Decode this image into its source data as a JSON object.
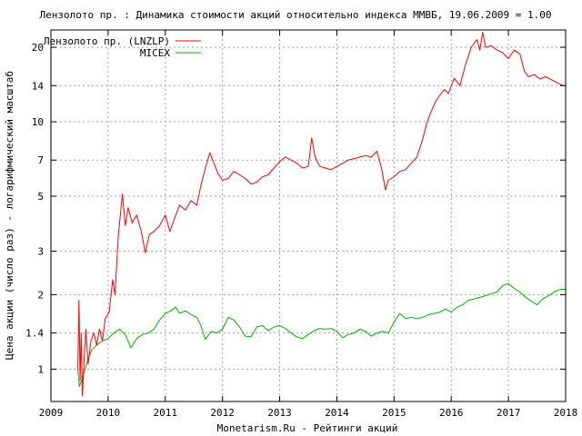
{
  "colors": {
    "lnzlp": "#ff0000",
    "micex": "#00b000",
    "grid": "#a0a0a0",
    "frame": "#000000"
  },
  "chart_data": {
    "type": "line",
    "title": "Лензолото пр. : Динамика стоимости акций относительно индекса ММВБ, 19.06.2009 = 1.00",
    "xlabel": "Monetarism.Ru - Рейтинги акций",
    "ylabel": "Цена акции (число раз) - логарифмический масштаб",
    "x_ticks": [
      "2009",
      "2010",
      "2011",
      "2012",
      "2013",
      "2014",
      "2015",
      "2016",
      "2017",
      "2018"
    ],
    "y_ticks": [
      "1",
      "1.4",
      "2",
      "3",
      "5",
      "7",
      "10",
      "14",
      "20"
    ],
    "y_scale": "log",
    "xlim": [
      2009,
      2018
    ],
    "ylim": [
      0.74,
      23.5
    ],
    "grid": true,
    "legend_position": "top-left",
    "series": [
      {
        "name": "Лензолото пр. (LNZLP)",
        "color": "#ff0000",
        "points": [
          [
            2009.47,
            1.0
          ],
          [
            2009.49,
            1.9
          ],
          [
            2009.51,
            0.9
          ],
          [
            2009.53,
            1.4
          ],
          [
            2009.55,
            0.78
          ],
          [
            2009.58,
            1.1
          ],
          [
            2009.61,
            1.45
          ],
          [
            2009.65,
            1.05
          ],
          [
            2009.7,
            1.3
          ],
          [
            2009.75,
            1.4
          ],
          [
            2009.8,
            1.25
          ],
          [
            2009.85,
            1.45
          ],
          [
            2009.9,
            1.3
          ],
          [
            2009.95,
            1.6
          ],
          [
            2010.02,
            1.7
          ],
          [
            2010.08,
            2.3
          ],
          [
            2010.12,
            2.0
          ],
          [
            2010.18,
            3.5
          ],
          [
            2010.25,
            5.1
          ],
          [
            2010.3,
            3.8
          ],
          [
            2010.35,
            4.5
          ],
          [
            2010.42,
            3.9
          ],
          [
            2010.5,
            4.2
          ],
          [
            2010.58,
            3.6
          ],
          [
            2010.65,
            2.95
          ],
          [
            2010.72,
            3.5
          ],
          [
            2010.8,
            3.6
          ],
          [
            2010.9,
            3.8
          ],
          [
            2011.0,
            4.2
          ],
          [
            2011.08,
            3.6
          ],
          [
            2011.15,
            4.0
          ],
          [
            2011.25,
            4.6
          ],
          [
            2011.35,
            4.4
          ],
          [
            2011.45,
            4.8
          ],
          [
            2011.55,
            4.6
          ],
          [
            2011.62,
            5.5
          ],
          [
            2011.7,
            6.5
          ],
          [
            2011.78,
            7.5
          ],
          [
            2011.85,
            6.8
          ],
          [
            2011.92,
            6.2
          ],
          [
            2012.0,
            5.8
          ],
          [
            2012.1,
            5.9
          ],
          [
            2012.2,
            6.3
          ],
          [
            2012.3,
            6.1
          ],
          [
            2012.4,
            5.9
          ],
          [
            2012.5,
            5.6
          ],
          [
            2012.6,
            5.7
          ],
          [
            2012.7,
            6.0
          ],
          [
            2012.8,
            6.1
          ],
          [
            2012.9,
            6.5
          ],
          [
            2013.0,
            6.9
          ],
          [
            2013.1,
            7.2
          ],
          [
            2013.2,
            7.0
          ],
          [
            2013.3,
            6.8
          ],
          [
            2013.4,
            6.5
          ],
          [
            2013.5,
            6.6
          ],
          [
            2013.56,
            8.6
          ],
          [
            2013.62,
            7.2
          ],
          [
            2013.7,
            6.6
          ],
          [
            2013.8,
            6.5
          ],
          [
            2013.9,
            6.4
          ],
          [
            2014.0,
            6.6
          ],
          [
            2014.1,
            6.8
          ],
          [
            2014.2,
            7.0
          ],
          [
            2014.3,
            7.1
          ],
          [
            2014.4,
            7.2
          ],
          [
            2014.5,
            7.3
          ],
          [
            2014.6,
            7.2
          ],
          [
            2014.7,
            7.6
          ],
          [
            2014.78,
            6.5
          ],
          [
            2014.85,
            5.3
          ],
          [
            2014.9,
            5.8
          ],
          [
            2015.0,
            6.0
          ],
          [
            2015.1,
            6.3
          ],
          [
            2015.2,
            6.4
          ],
          [
            2015.3,
            6.8
          ],
          [
            2015.4,
            7.2
          ],
          [
            2015.5,
            8.5
          ],
          [
            2015.58,
            10.0
          ],
          [
            2015.65,
            11.0
          ],
          [
            2015.72,
            12.0
          ],
          [
            2015.8,
            12.8
          ],
          [
            2015.88,
            13.5
          ],
          [
            2015.95,
            13.0
          ],
          [
            2016.05,
            15.0
          ],
          [
            2016.15,
            14.0
          ],
          [
            2016.25,
            17.0
          ],
          [
            2016.35,
            20.0
          ],
          [
            2016.45,
            21.5
          ],
          [
            2016.5,
            19.5
          ],
          [
            2016.55,
            23.0
          ],
          [
            2016.6,
            20.0
          ],
          [
            2016.7,
            20.3
          ],
          [
            2016.8,
            19.5
          ],
          [
            2016.9,
            19.0
          ],
          [
            2017.0,
            18.0
          ],
          [
            2017.1,
            19.5
          ],
          [
            2017.2,
            18.8
          ],
          [
            2017.28,
            16.0
          ],
          [
            2017.35,
            15.2
          ],
          [
            2017.45,
            15.5
          ],
          [
            2017.55,
            14.9
          ],
          [
            2017.65,
            15.2
          ],
          [
            2017.75,
            14.8
          ],
          [
            2017.85,
            14.4
          ],
          [
            2017.95,
            14.0
          ],
          [
            2018.0,
            14.0
          ]
        ]
      },
      {
        "name": "MICEX",
        "color": "#00b000",
        "points": [
          [
            2009.47,
            1.0
          ],
          [
            2009.5,
            0.85
          ],
          [
            2009.55,
            0.92
          ],
          [
            2009.6,
            1.0
          ],
          [
            2009.65,
            1.1
          ],
          [
            2009.72,
            1.2
          ],
          [
            2009.8,
            1.25
          ],
          [
            2009.9,
            1.3
          ],
          [
            2010.0,
            1.33
          ],
          [
            2010.1,
            1.4
          ],
          [
            2010.2,
            1.45
          ],
          [
            2010.3,
            1.38
          ],
          [
            2010.4,
            1.22
          ],
          [
            2010.5,
            1.33
          ],
          [
            2010.6,
            1.38
          ],
          [
            2010.7,
            1.4
          ],
          [
            2010.8,
            1.45
          ],
          [
            2010.9,
            1.58
          ],
          [
            2011.0,
            1.68
          ],
          [
            2011.1,
            1.72
          ],
          [
            2011.18,
            1.78
          ],
          [
            2011.25,
            1.68
          ],
          [
            2011.35,
            1.72
          ],
          [
            2011.45,
            1.66
          ],
          [
            2011.55,
            1.62
          ],
          [
            2011.62,
            1.5
          ],
          [
            2011.7,
            1.32
          ],
          [
            2011.8,
            1.42
          ],
          [
            2011.9,
            1.4
          ],
          [
            2012.0,
            1.45
          ],
          [
            2012.1,
            1.62
          ],
          [
            2012.2,
            1.58
          ],
          [
            2012.3,
            1.48
          ],
          [
            2012.4,
            1.36
          ],
          [
            2012.5,
            1.35
          ],
          [
            2012.6,
            1.48
          ],
          [
            2012.7,
            1.5
          ],
          [
            2012.8,
            1.43
          ],
          [
            2012.9,
            1.48
          ],
          [
            2013.0,
            1.5
          ],
          [
            2013.1,
            1.46
          ],
          [
            2013.2,
            1.4
          ],
          [
            2013.3,
            1.35
          ],
          [
            2013.4,
            1.33
          ],
          [
            2013.5,
            1.38
          ],
          [
            2013.6,
            1.43
          ],
          [
            2013.7,
            1.46
          ],
          [
            2013.8,
            1.45
          ],
          [
            2013.9,
            1.46
          ],
          [
            2014.0,
            1.42
          ],
          [
            2014.1,
            1.34
          ],
          [
            2014.2,
            1.38
          ],
          [
            2014.3,
            1.4
          ],
          [
            2014.4,
            1.45
          ],
          [
            2014.5,
            1.42
          ],
          [
            2014.6,
            1.36
          ],
          [
            2014.7,
            1.4
          ],
          [
            2014.8,
            1.42
          ],
          [
            2014.9,
            1.4
          ],
          [
            2015.0,
            1.55
          ],
          [
            2015.1,
            1.68
          ],
          [
            2015.2,
            1.6
          ],
          [
            2015.3,
            1.62
          ],
          [
            2015.4,
            1.6
          ],
          [
            2015.5,
            1.62
          ],
          [
            2015.6,
            1.66
          ],
          [
            2015.7,
            1.68
          ],
          [
            2015.8,
            1.7
          ],
          [
            2015.9,
            1.75
          ],
          [
            2016.0,
            1.7
          ],
          [
            2016.1,
            1.78
          ],
          [
            2016.2,
            1.82
          ],
          [
            2016.3,
            1.9
          ],
          [
            2016.4,
            1.92
          ],
          [
            2016.5,
            1.95
          ],
          [
            2016.6,
            1.98
          ],
          [
            2016.7,
            2.02
          ],
          [
            2016.8,
            2.05
          ],
          [
            2016.9,
            2.18
          ],
          [
            2017.0,
            2.22
          ],
          [
            2017.1,
            2.12
          ],
          [
            2017.2,
            2.05
          ],
          [
            2017.3,
            1.95
          ],
          [
            2017.4,
            1.88
          ],
          [
            2017.5,
            1.82
          ],
          [
            2017.6,
            1.92
          ],
          [
            2017.7,
            1.98
          ],
          [
            2017.8,
            2.05
          ],
          [
            2017.9,
            2.1
          ],
          [
            2018.0,
            2.1
          ]
        ]
      }
    ]
  }
}
